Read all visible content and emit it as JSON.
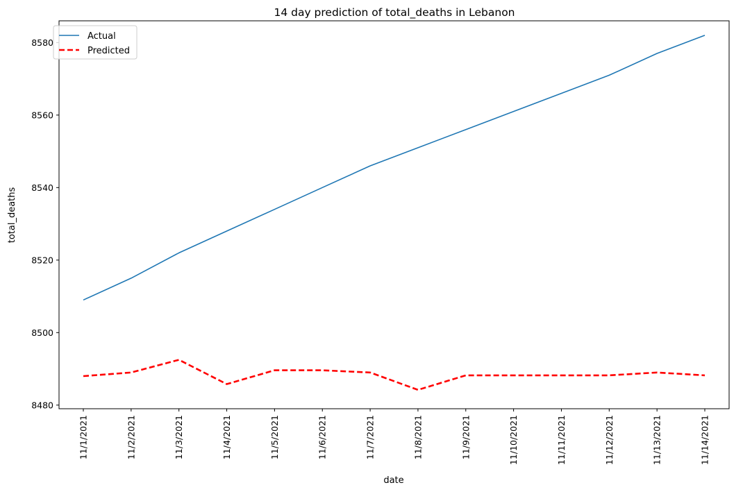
{
  "chart_data": {
    "type": "line",
    "title": "14 day prediction of total_deaths in Lebanon",
    "xlabel": "date",
    "ylabel": "total_deaths",
    "categories": [
      "11/1/2021",
      "11/2/2021",
      "11/3/2021",
      "11/4/2021",
      "11/5/2021",
      "11/6/2021",
      "11/7/2021",
      "11/8/2021",
      "11/9/2021",
      "11/10/2021",
      "11/11/2021",
      "11/12/2021",
      "11/13/2021",
      "11/14/2021"
    ],
    "ylim": [
      8479,
      8586
    ],
    "yticks": [
      8480,
      8500,
      8520,
      8540,
      8560,
      8580
    ],
    "grid": false,
    "legend": "top-left",
    "series": [
      {
        "name": "Actual",
        "color": "#1f77b4",
        "style": "solid",
        "values": [
          8509,
          8515,
          8522,
          8528,
          8534,
          8540,
          8546,
          8551,
          8556,
          8561,
          8566,
          8571,
          8577,
          8582
        ]
      },
      {
        "name": "Predicted",
        "color": "#ff0000",
        "style": "dashed",
        "values": [
          8488,
          8489,
          8492.5,
          8485.8,
          8489.6,
          8489.6,
          8489,
          8484.2,
          8488.2,
          8488.2,
          8488.2,
          8488.2,
          8489,
          8488.2
        ]
      }
    ]
  }
}
